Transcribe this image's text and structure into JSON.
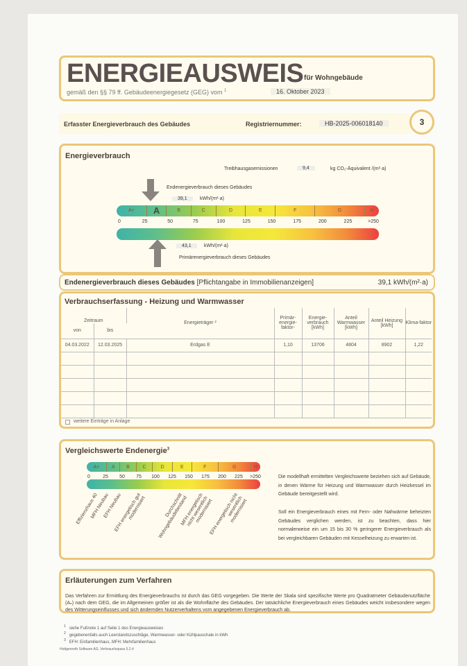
{
  "header": {
    "title": "ENERGIEAUSWEIS",
    "subtitle": "für Wohngebäude",
    "law_line": "gemäß den §§ 79 ff. Gebäudeenergiegesetz (GEG) vom",
    "law_footnote": "1",
    "law_date": "16. Oktober 2023"
  },
  "section_bar": {
    "label": "Erfasster Energieverbrauch des Gebäudes",
    "reg_label": "Registriernummer:",
    "reg_value": "HB-2025-006018140",
    "page_number": "3"
  },
  "energy": {
    "title": "Energieverbrauch",
    "ghg_label": "Treibhausgasemissionen",
    "ghg_value": "9,4",
    "ghg_unit": "kg CO₂-Äquivalent /(m²·a)",
    "end_label": "Endenergieverbrauch dieses Gebäudes",
    "end_value": "39,1",
    "end_unit": "kWh/(m²·a)",
    "end_value_num": 39.1,
    "primary_label": "Primärenergieverbrauch dieses Gebäudes",
    "primary_value": "43,1",
    "primary_unit": "kWh/(m²·a)",
    "primary_value_num": 43.1,
    "classes": [
      "A+",
      "A",
      "B",
      "C",
      "D",
      "E",
      "F",
      "G",
      "H"
    ],
    "current_class": "A",
    "ticks": [
      "0",
      "25",
      "50",
      "75",
      "100",
      "125",
      "150",
      "175",
      "200",
      "225",
      ">250"
    ]
  },
  "mandatory": {
    "label": "Endenergieverbrauch dieses Gebäudes",
    "note": "[Pflichtangabe in Immobilienanzeigen]",
    "value": "39,1 kWh/(m²·a)"
  },
  "consumption": {
    "title": "Verbrauchserfassung - Heizung und Warmwasser",
    "headers": {
      "period": "Zeitraum",
      "from": "von",
      "to": "bis",
      "carrier": "Energieträger ²",
      "pef": "Primär-energie-faktor-",
      "consumption": "Energie-verbrauch [kWh]",
      "ww": "Anteil Warmwasser [kWh]",
      "heat": "Anteil Heizung [kWh]",
      "climate": "Klima-faktor"
    },
    "rows": [
      [
        "04.03.2022",
        "12.03.2025",
        "Erdgas E",
        "1,10",
        "13706",
        "4804",
        "8902",
        "1,22"
      ]
    ],
    "more_label": "weitere Einträge in Anlage"
  },
  "compare": {
    "title": "Vergleichswerte Endenergie",
    "title_sup": "3",
    "labels": [
      "Effizienzhaus 40",
      "MFH Neubau",
      "EFH Neubau",
      "EFH energetisch gut modernisiert",
      "Durchschnitt Wohngebäudebestand",
      "MFH energetisch nicht wesentlich modernisiert",
      "EFH energetisch nicht wesentlich modernisiert"
    ],
    "para1": "Die modellhaft ermittelten Vergleichswerte beziehen sich auf Gebäude, in denen Wärme für Heizung und Warmwasser durch Heizkessel im Gebäude bereitgestellt wird.",
    "para2": "Soll ein Energieverbrauch eines mit Fern- oder Nahwärme beheizten Gebäudes verglichen werden, ist zu beachten, dass hier normalerweise ein um 15 bis 30 % geringerer Energieverbrauch als bei vergleichbaren Gebäuden mit Kesselheizung zu erwarten ist."
  },
  "explain": {
    "title": "Erläuterungen zum Verfahren",
    "text": "Das Verfahren zur Ermittlung des Energieverbrauchs ist durch das GEG vorgegeben. Die Werte der Skala sind spezifische Werte pro Quadratmeter Gebäudenutzfläche (Aₙ) nach dem GEG, die im Allgemeinen größer ist als die Wohnfläche des Gebäudes. Der tatsächliche Energieverbrauch eines Gebäudes weicht insbesondere wegen des Witterungseinflusses und sich ändernden Nutzerverhaltens vom angegebenen Energieverbrauch ab."
  },
  "footnotes": [
    {
      "n": "1",
      "text": "siehe Fußnote 1 auf Seite 1 des Energieausweises"
    },
    {
      "n": "2",
      "text": "gegebenenfalls auch Leerstandszuschläge, Warmwasser- oder Kühlpauschale in kWh"
    },
    {
      "n": "3",
      "text": "EFH: Einfamilienhaus, MFH: Mehrfamilienhaus"
    }
  ],
  "software": "Hottgenroth Software AG, Verbrauchspass 5.2.4",
  "colors": {
    "border": "#ebc678",
    "scale_start": "#3fb3a8",
    "scale_mid": "#f5e83a",
    "scale_end": "#ec4040"
  }
}
